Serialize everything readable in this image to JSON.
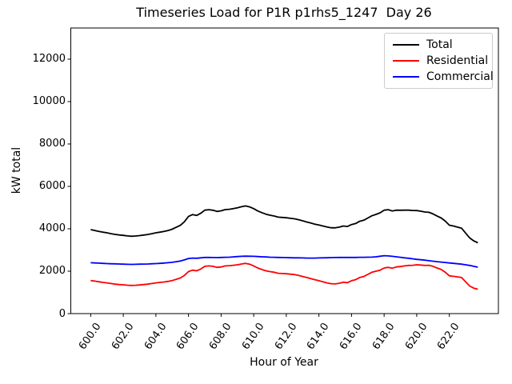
{
  "chart_data": {
    "type": "line",
    "title": "Timeseries Load for P1R p1rhs5_1247  Day 26",
    "xlabel": "Hour of Year",
    "ylabel": "kW total",
    "grid": false,
    "xlim": [
      598.78,
      625.01
    ],
    "ylim": [
      0,
      13470
    ],
    "xticks": [
      600,
      602,
      604,
      606,
      608,
      610,
      612,
      614,
      616,
      618,
      620,
      622
    ],
    "xtick_labels": [
      "600.0",
      "602.0",
      "604.0",
      "606.0",
      "608.0",
      "610.0",
      "612.0",
      "614.0",
      "616.0",
      "618.0",
      "620.0",
      "622.0"
    ],
    "yticks": [
      0,
      2000,
      4000,
      6000,
      8000,
      10000,
      12000
    ],
    "ytick_labels": [
      "0",
      "2000",
      "4000",
      "6000",
      "8000",
      "10000",
      "12000"
    ],
    "legend": {
      "position": "upper right",
      "items": [
        {
          "label": "Total",
          "color": "#000000"
        },
        {
          "label": "Residential",
          "color": "#ff0000"
        },
        {
          "label": "Commercial",
          "color": "#0000ff"
        }
      ]
    },
    "x": [
      600.0,
      600.25,
      600.5,
      600.75,
      601.0,
      601.25,
      601.5,
      601.75,
      602.0,
      602.25,
      602.5,
      602.75,
      603.0,
      603.25,
      603.5,
      603.75,
      604.0,
      604.25,
      604.5,
      604.75,
      605.0,
      605.25,
      605.5,
      605.75,
      606.0,
      606.25,
      606.5,
      606.75,
      607.0,
      607.25,
      607.5,
      607.75,
      608.0,
      608.25,
      608.5,
      608.75,
      609.0,
      609.25,
      609.5,
      609.75,
      610.0,
      610.25,
      610.5,
      610.75,
      611.0,
      611.25,
      611.5,
      611.75,
      612.0,
      612.25,
      612.5,
      612.75,
      613.0,
      613.25,
      613.5,
      613.75,
      614.0,
      614.25,
      614.5,
      614.75,
      615.0,
      615.25,
      615.5,
      615.75,
      616.0,
      616.25,
      616.5,
      616.75,
      617.0,
      617.25,
      617.5,
      617.75,
      618.0,
      618.25,
      618.5,
      618.75,
      619.0,
      619.25,
      619.5,
      619.75,
      620.0,
      620.25,
      620.5,
      620.75,
      621.0,
      621.25,
      621.5,
      621.75,
      622.0,
      622.25,
      622.5,
      622.75,
      623.0,
      623.25,
      623.5,
      623.75
    ],
    "series": [
      {
        "name": "Total",
        "color": "#000000",
        "values": [
          3960,
          3920,
          3880,
          3840,
          3810,
          3770,
          3735,
          3710,
          3690,
          3665,
          3650,
          3660,
          3680,
          3705,
          3730,
          3770,
          3810,
          3840,
          3875,
          3920,
          3980,
          4070,
          4160,
          4330,
          4580,
          4670,
          4630,
          4730,
          4880,
          4900,
          4875,
          4820,
          4850,
          4905,
          4920,
          4955,
          4990,
          5040,
          5080,
          5035,
          4950,
          4840,
          4760,
          4690,
          4640,
          4605,
          4550,
          4535,
          4520,
          4495,
          4470,
          4430,
          4375,
          4320,
          4270,
          4220,
          4175,
          4130,
          4085,
          4050,
          4045,
          4080,
          4130,
          4110,
          4200,
          4250,
          4355,
          4405,
          4510,
          4615,
          4680,
          4755,
          4880,
          4900,
          4840,
          4880,
          4875,
          4880,
          4880,
          4865,
          4860,
          4830,
          4790,
          4775,
          4700,
          4600,
          4510,
          4360,
          4170,
          4130,
          4080,
          4030,
          3800,
          3570,
          3430,
          3340
        ]
      },
      {
        "name": "Residential",
        "color": "#ff0000",
        "values": [
          1560,
          1530,
          1500,
          1470,
          1450,
          1420,
          1390,
          1370,
          1360,
          1340,
          1330,
          1335,
          1350,
          1370,
          1390,
          1420,
          1450,
          1470,
          1490,
          1520,
          1560,
          1620,
          1680,
          1800,
          1980,
          2050,
          2020,
          2100,
          2230,
          2250,
          2230,
          2180,
          2200,
          2250,
          2260,
          2280,
          2300,
          2340,
          2370,
          2330,
          2250,
          2150,
          2080,
          2020,
          1980,
          1950,
          1900,
          1890,
          1880,
          1860,
          1840,
          1800,
          1750,
          1700,
          1650,
          1600,
          1550,
          1500,
          1450,
          1410,
          1400,
          1430,
          1480,
          1460,
          1550,
          1600,
          1700,
          1750,
          1850,
          1950,
          2000,
          2050,
          2150,
          2180,
          2140,
          2200,
          2220,
          2250,
          2270,
          2280,
          2300,
          2290,
          2270,
          2280,
          2230,
          2150,
          2080,
          1950,
          1780,
          1760,
          1730,
          1700,
          1500,
          1300,
          1200,
          1150
        ]
      },
      {
        "name": "Commercial",
        "color": "#0000ff",
        "values": [
          2400,
          2390,
          2380,
          2370,
          2360,
          2350,
          2345,
          2340,
          2330,
          2325,
          2320,
          2325,
          2330,
          2335,
          2340,
          2350,
          2360,
          2370,
          2385,
          2400,
          2420,
          2450,
          2480,
          2530,
          2600,
          2620,
          2610,
          2630,
          2650,
          2650,
          2645,
          2640,
          2650,
          2655,
          2660,
          2675,
          2690,
          2700,
          2710,
          2705,
          2700,
          2690,
          2680,
          2670,
          2660,
          2655,
          2650,
          2645,
          2640,
          2635,
          2630,
          2630,
          2625,
          2620,
          2620,
          2620,
          2625,
          2630,
          2635,
          2640,
          2645,
          2650,
          2650,
          2650,
          2650,
          2650,
          2655,
          2655,
          2660,
          2665,
          2680,
          2705,
          2730,
          2720,
          2700,
          2680,
          2655,
          2630,
          2610,
          2585,
          2560,
          2540,
          2520,
          2495,
          2470,
          2450,
          2430,
          2410,
          2390,
          2370,
          2350,
          2330,
          2300,
          2270,
          2230,
          2190
        ]
      }
    ]
  }
}
